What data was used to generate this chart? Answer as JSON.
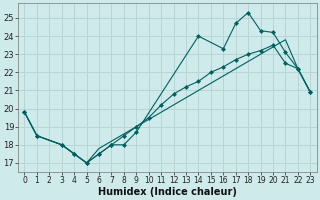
{
  "xlabel": "Humidex (Indice chaleur)",
  "bg_color": "#ceeaea",
  "grid_color": "#b8d4d4",
  "line_color": "#006060",
  "xlim": [
    -0.5,
    23.5
  ],
  "ylim": [
    16.5,
    25.8
  ],
  "yticks": [
    17,
    18,
    19,
    20,
    21,
    22,
    23,
    24,
    25
  ],
  "xticks": [
    0,
    1,
    2,
    3,
    4,
    5,
    6,
    7,
    8,
    9,
    10,
    11,
    12,
    13,
    14,
    15,
    16,
    17,
    18,
    19,
    20,
    21,
    22,
    23
  ],
  "line1_x": [
    0,
    1,
    3,
    4,
    5,
    6,
    7,
    8,
    9,
    14,
    16,
    17,
    18,
    19,
    20,
    21,
    22,
    23
  ],
  "line1_y": [
    19.8,
    18.5,
    18.0,
    17.5,
    17.0,
    17.5,
    18.0,
    18.0,
    18.7,
    24.0,
    23.3,
    24.7,
    25.3,
    24.3,
    24.2,
    23.1,
    22.2,
    20.9
  ],
  "line2_x": [
    0,
    1,
    3,
    4,
    5,
    6,
    7,
    8,
    9,
    10,
    11,
    12,
    13,
    14,
    15,
    16,
    17,
    18,
    19,
    20,
    21,
    22,
    23
  ],
  "line2_y": [
    19.8,
    18.5,
    18.0,
    17.5,
    17.0,
    17.5,
    18.0,
    18.5,
    19.0,
    19.5,
    20.2,
    20.8,
    21.2,
    21.5,
    22.0,
    22.3,
    22.7,
    23.0,
    23.2,
    23.5,
    22.5,
    22.2,
    20.9
  ],
  "line3_x": [
    0,
    1,
    3,
    4,
    5,
    6,
    7,
    8,
    9,
    10,
    11,
    12,
    13,
    14,
    15,
    16,
    17,
    18,
    19,
    20,
    21,
    22,
    23
  ],
  "line3_y": [
    19.8,
    18.5,
    18.0,
    17.5,
    17.0,
    17.8,
    18.2,
    18.6,
    19.0,
    19.4,
    19.8,
    20.2,
    20.6,
    21.0,
    21.4,
    21.8,
    22.2,
    22.6,
    23.0,
    23.4,
    23.8,
    22.2,
    20.9
  ]
}
